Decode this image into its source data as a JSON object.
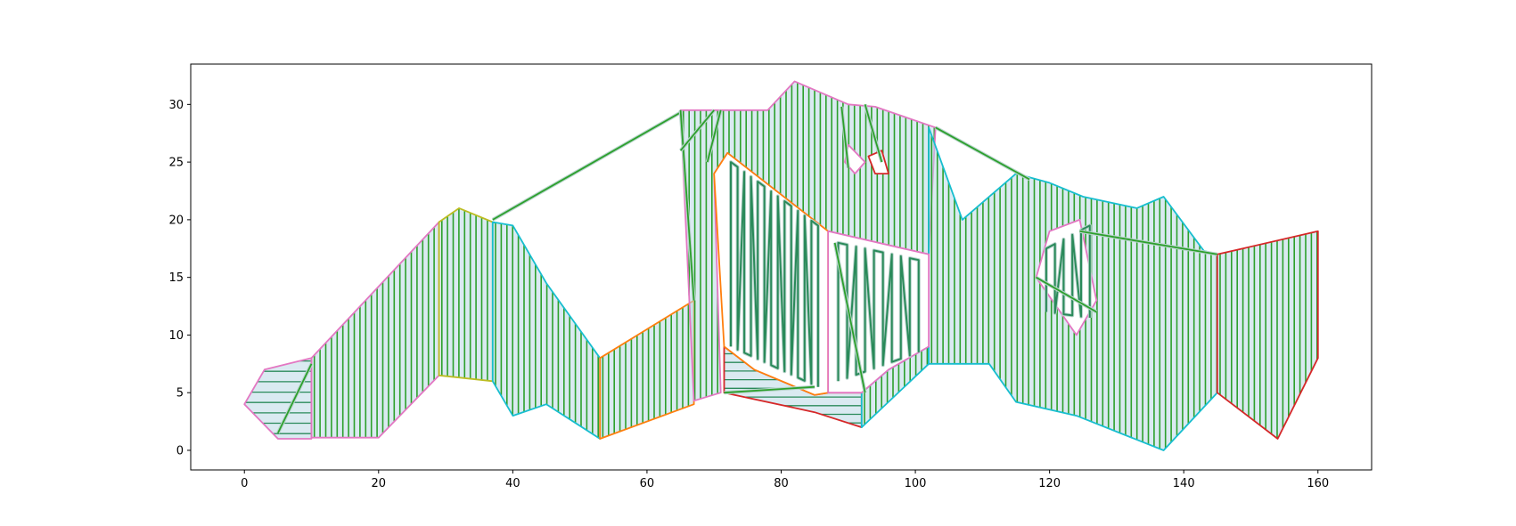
{
  "chart_data": {
    "type": "area",
    "title": "",
    "xlabel": "",
    "ylabel": "",
    "xlim": [
      -8,
      168
    ],
    "ylim": [
      -1.7,
      33.5
    ],
    "xticks": [
      0,
      20,
      40,
      60,
      80,
      100,
      120,
      140,
      160
    ],
    "yticks": [
      0,
      5,
      10,
      15,
      20,
      25,
      30
    ],
    "grid": false,
    "legend": "none",
    "hatch": {
      "fill": "#bcd8e6",
      "stroke": "#2ca02c",
      "outline": "#2a8a5a"
    },
    "regions": [
      {
        "points": [
          [
            0,
            4
          ],
          [
            3,
            7
          ],
          [
            10,
            8
          ],
          [
            10,
            1
          ],
          [
            5,
            1
          ],
          [
            0,
            4
          ]
        ],
        "hatch": "horizontal",
        "spacing": 0.9,
        "edge": "#e377c2"
      },
      {
        "points": [
          [
            10,
            8
          ],
          [
            29,
            19.8
          ],
          [
            29,
            6.5
          ],
          [
            20,
            1.1
          ],
          [
            10,
            1.1
          ]
        ],
        "hatch": "vertical",
        "spacing": 0.85,
        "edge": "#e377c2"
      },
      {
        "points": [
          [
            29,
            19.8
          ],
          [
            32,
            21
          ],
          [
            37,
            19.8
          ],
          [
            37,
            6
          ],
          [
            29,
            6.5
          ]
        ],
        "hatch": "vertical",
        "spacing": 0.85,
        "edge": "#bcbd22"
      },
      {
        "points": [
          [
            37,
            19.8
          ],
          [
            40,
            19.5
          ],
          [
            45,
            14.5
          ],
          [
            53,
            8
          ],
          [
            53,
            1
          ],
          [
            45,
            4
          ],
          [
            40,
            3
          ],
          [
            37,
            6
          ]
        ],
        "hatch": "vertical",
        "spacing": 0.85,
        "edge": "#17becf"
      },
      {
        "points": [
          [
            53,
            8
          ],
          [
            67,
            13
          ],
          [
            67,
            4
          ],
          [
            53,
            1
          ]
        ],
        "hatch": "vertical",
        "spacing": 0.85,
        "edge": "#ff7f0e"
      },
      {
        "points": [
          [
            65,
            29.5
          ],
          [
            78,
            29.5
          ],
          [
            82,
            32
          ],
          [
            90,
            30
          ],
          [
            94,
            29.8
          ],
          [
            103,
            28
          ],
          [
            102,
            17
          ],
          [
            87,
            19
          ],
          [
            72,
            25.8
          ],
          [
            70,
            24
          ],
          [
            71,
            5
          ],
          [
            67,
            4.3
          ]
        ],
        "hatch": "vertical",
        "spacing": 0.85,
        "edge": "#e377c2"
      },
      {
        "points": [
          [
            71.5,
            9
          ],
          [
            76,
            7
          ],
          [
            85,
            4.8
          ],
          [
            87,
            5
          ],
          [
            92,
            5
          ],
          [
            92,
            2
          ],
          [
            85,
            3.3
          ],
          [
            71.5,
            5
          ]
        ],
        "hatch": "horizontal",
        "spacing": 0.75,
        "edge": "#d62728"
      },
      {
        "points": [
          [
            92,
            5
          ],
          [
            96,
            7
          ],
          [
            102,
            9
          ],
          [
            102,
            7.5
          ],
          [
            92,
            2
          ]
        ],
        "hatch": "vertical",
        "spacing": 0.85,
        "edge": "#17becf"
      },
      {
        "points": [
          [
            102,
            28
          ],
          [
            107,
            20
          ],
          [
            115,
            24
          ],
          [
            120,
            23.2
          ],
          [
            125,
            22
          ],
          [
            133,
            21
          ],
          [
            137,
            22
          ],
          [
            143,
            17.3
          ],
          [
            145,
            17
          ],
          [
            145,
            5
          ],
          [
            137,
            0
          ],
          [
            124,
            3
          ],
          [
            115,
            4.2
          ],
          [
            111,
            7.5
          ],
          [
            102,
            7.5
          ]
        ],
        "hatch": "vertical",
        "spacing": 0.85,
        "edge": "#17becf"
      },
      {
        "points": [
          [
            145,
            17
          ],
          [
            160,
            19
          ],
          [
            160,
            8
          ],
          [
            154,
            1
          ],
          [
            145,
            5
          ]
        ],
        "hatch": "vertical",
        "spacing": 0.85,
        "edge": "#d62728"
      }
    ],
    "holes": [
      {
        "points": [
          [
            72,
            25.8
          ],
          [
            87,
            19
          ],
          [
            87,
            5
          ],
          [
            85,
            4.8
          ],
          [
            76,
            7
          ],
          [
            71.5,
            9
          ],
          [
            70,
            24
          ]
        ],
        "edge": "#ff7f0e"
      },
      {
        "points": [
          [
            87,
            19
          ],
          [
            102,
            17
          ],
          [
            102,
            9
          ],
          [
            96,
            7
          ],
          [
            92,
            5
          ],
          [
            87,
            5
          ]
        ],
        "edge": "#e377c2"
      },
      {
        "points": [
          [
            90,
            26.5
          ],
          [
            92.5,
            25
          ],
          [
            91,
            24
          ],
          [
            89.5,
            25
          ]
        ],
        "edge": "#e377c2"
      },
      {
        "points": [
          [
            93,
            25.5
          ],
          [
            95,
            26
          ],
          [
            96,
            24
          ],
          [
            94,
            24
          ]
        ],
        "edge": "#d62728"
      },
      {
        "points": [
          [
            120,
            19
          ],
          [
            124.5,
            20
          ],
          [
            127,
            13
          ],
          [
            124,
            10
          ],
          [
            118,
            15
          ]
        ],
        "edge": "#e377c2"
      }
    ],
    "lines": [
      {
        "points": [
          [
            37,
            20
          ],
          [
            65,
            29.3
          ]
        ],
        "color": "#2ca02c"
      },
      {
        "points": [
          [
            103,
            28
          ],
          [
            117,
            23.5
          ]
        ],
        "color": "#2ca02c"
      },
      {
        "points": [
          [
            124.5,
            19
          ],
          [
            145,
            17
          ]
        ],
        "color": "#2ca02c"
      },
      {
        "points": [
          [
            5,
            1.5
          ],
          [
            10,
            7.5
          ]
        ],
        "color": "#2ca02c"
      },
      {
        "points": [
          [
            71.5,
            5
          ],
          [
            85,
            5.5
          ]
        ],
        "color": "#2ca02c"
      },
      {
        "points": [
          [
            118,
            15
          ],
          [
            127,
            12
          ]
        ],
        "color": "#2ca02c"
      },
      {
        "points": [
          [
            88,
            18
          ],
          [
            92.5,
            5
          ]
        ],
        "color": "#2ca02c"
      },
      {
        "points": [
          [
            67,
            13
          ],
          [
            65,
            29.5
          ]
        ],
        "color": "#2ca02c"
      },
      {
        "points": [
          [
            65,
            26
          ],
          [
            70,
            29.5
          ]
        ],
        "color": "#2ca02c"
      },
      {
        "points": [
          [
            69,
            25
          ],
          [
            71,
            29.5
          ]
        ],
        "color": "#2ca02c"
      },
      {
        "points": [
          [
            89,
            29.8
          ],
          [
            90,
            24.5
          ]
        ],
        "color": "#2ca02c"
      },
      {
        "points": [
          [
            92.5,
            30
          ],
          [
            95,
            25
          ]
        ],
        "color": "#2ca02c"
      }
    ],
    "serpentines": [
      {
        "x0": 72.5,
        "x1": 85.5,
        "count": 7,
        "top": [
          [
            72.5,
            25
          ],
          [
            85.5,
            19.5
          ]
        ],
        "bottom": [
          [
            72.5,
            9
          ],
          [
            85.5,
            5.5
          ]
        ]
      },
      {
        "x0": 88.5,
        "x1": 100.5,
        "count": 5,
        "top": [
          [
            88.5,
            18
          ],
          [
            100.5,
            16.5
          ]
        ],
        "bottom": [
          [
            88.5,
            6
          ],
          [
            100.5,
            8.5
          ]
        ]
      },
      {
        "x0": 119.5,
        "x1": 126,
        "count": 3,
        "top": [
          [
            119.5,
            17.5
          ],
          [
            126,
            19.5
          ]
        ],
        "bottom": [
          [
            119.5,
            12
          ],
          [
            126,
            11.5
          ]
        ]
      }
    ]
  }
}
